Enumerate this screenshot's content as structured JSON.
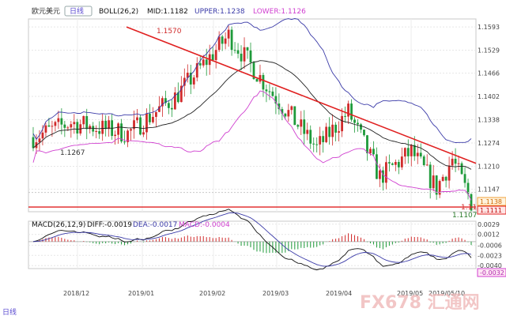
{
  "chart_data": [
    {
      "type": "candlestick",
      "instrument": "欧元美元",
      "interval_badge": "日线",
      "indicator_label": "BOLL(26,2)",
      "mid_label": "MID:1.1182",
      "upper_label": "UPPER:1.1238",
      "lower_label": "LOWER:1.1126",
      "ylim": [
        1.1085,
        1.1615
      ],
      "yticks": [
        "1.1593",
        "1.1529",
        "1.1466",
        "1.1402",
        "1.1338",
        "1.1274",
        "1.1210",
        "1.1147"
      ],
      "xticks": [
        "2018/12",
        "2019/01",
        "2019/02",
        "2019/03",
        "2019/04",
        "2019/05",
        "2019/05/10"
      ],
      "annotations": {
        "high": "1.1570",
        "low1": "1.1267",
        "low2": "1.1111",
        "last": "1.1107",
        "badge_a": "1.1138",
        "badge_b": "1.1111"
      },
      "candles": [],
      "colors": {
        "up": "#d02a2a",
        "down": "#1e9a3a",
        "upper": "#3b3ba8",
        "mid": "#222222",
        "lower": "#d040d0",
        "trend": "#e02020"
      }
    },
    {
      "type": "line",
      "indicator_label": "MACD(26,12,9)",
      "diff_label": "DIFF:-0.0019",
      "dea_label": "DEA:-0.0017",
      "macd_label": "MACD:-0.0004",
      "ylim": [
        -0.0045,
        0.0034
      ],
      "yticks": [
        "0.0029",
        "0.0012",
        "-0.0006",
        "-0.0023",
        "-0.0040"
      ],
      "last_badge": "-0.0032"
    }
  ],
  "watermark": "FX678 汇通网"
}
